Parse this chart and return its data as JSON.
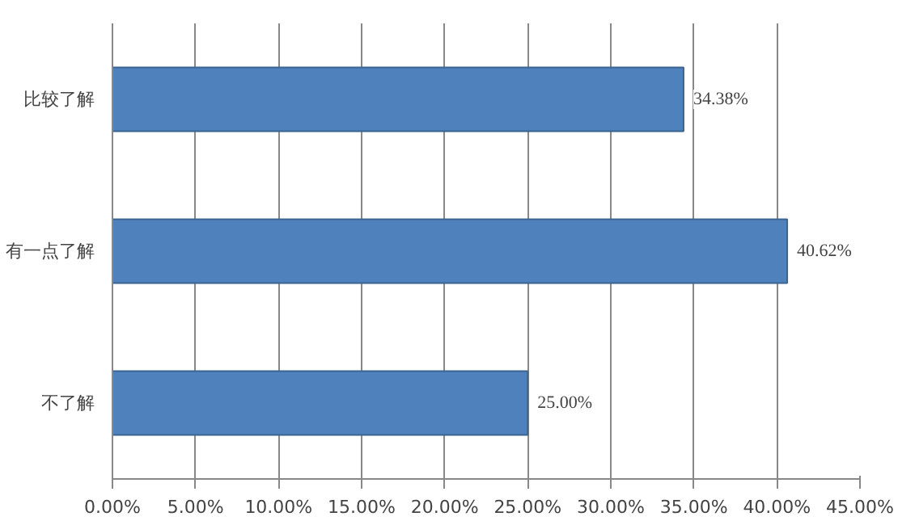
{
  "chart_data": {
    "type": "bar",
    "orientation": "horizontal",
    "categories": [
      "比较了解",
      "有一点了解",
      "不了解"
    ],
    "values": [
      34.38,
      40.62,
      25.0
    ],
    "value_labels": [
      "34.38%",
      "40.62%",
      "25.00%"
    ],
    "color": "#4f81bd",
    "xlim": [
      0,
      45
    ],
    "xticks": [
      {
        "value": 0,
        "label": "0.00%"
      },
      {
        "value": 5,
        "label": "5.00%"
      },
      {
        "value": 10,
        "label": "10.00%"
      },
      {
        "value": 15,
        "label": "15.00%"
      },
      {
        "value": 20,
        "label": "20.00%"
      },
      {
        "value": 25,
        "label": "25.00%"
      },
      {
        "value": 30,
        "label": "30.00%"
      },
      {
        "value": 35,
        "label": "35.00%"
      },
      {
        "value": 40,
        "label": "40.00%"
      },
      {
        "value": 45,
        "label": "45.00%"
      }
    ],
    "grid": "x"
  }
}
